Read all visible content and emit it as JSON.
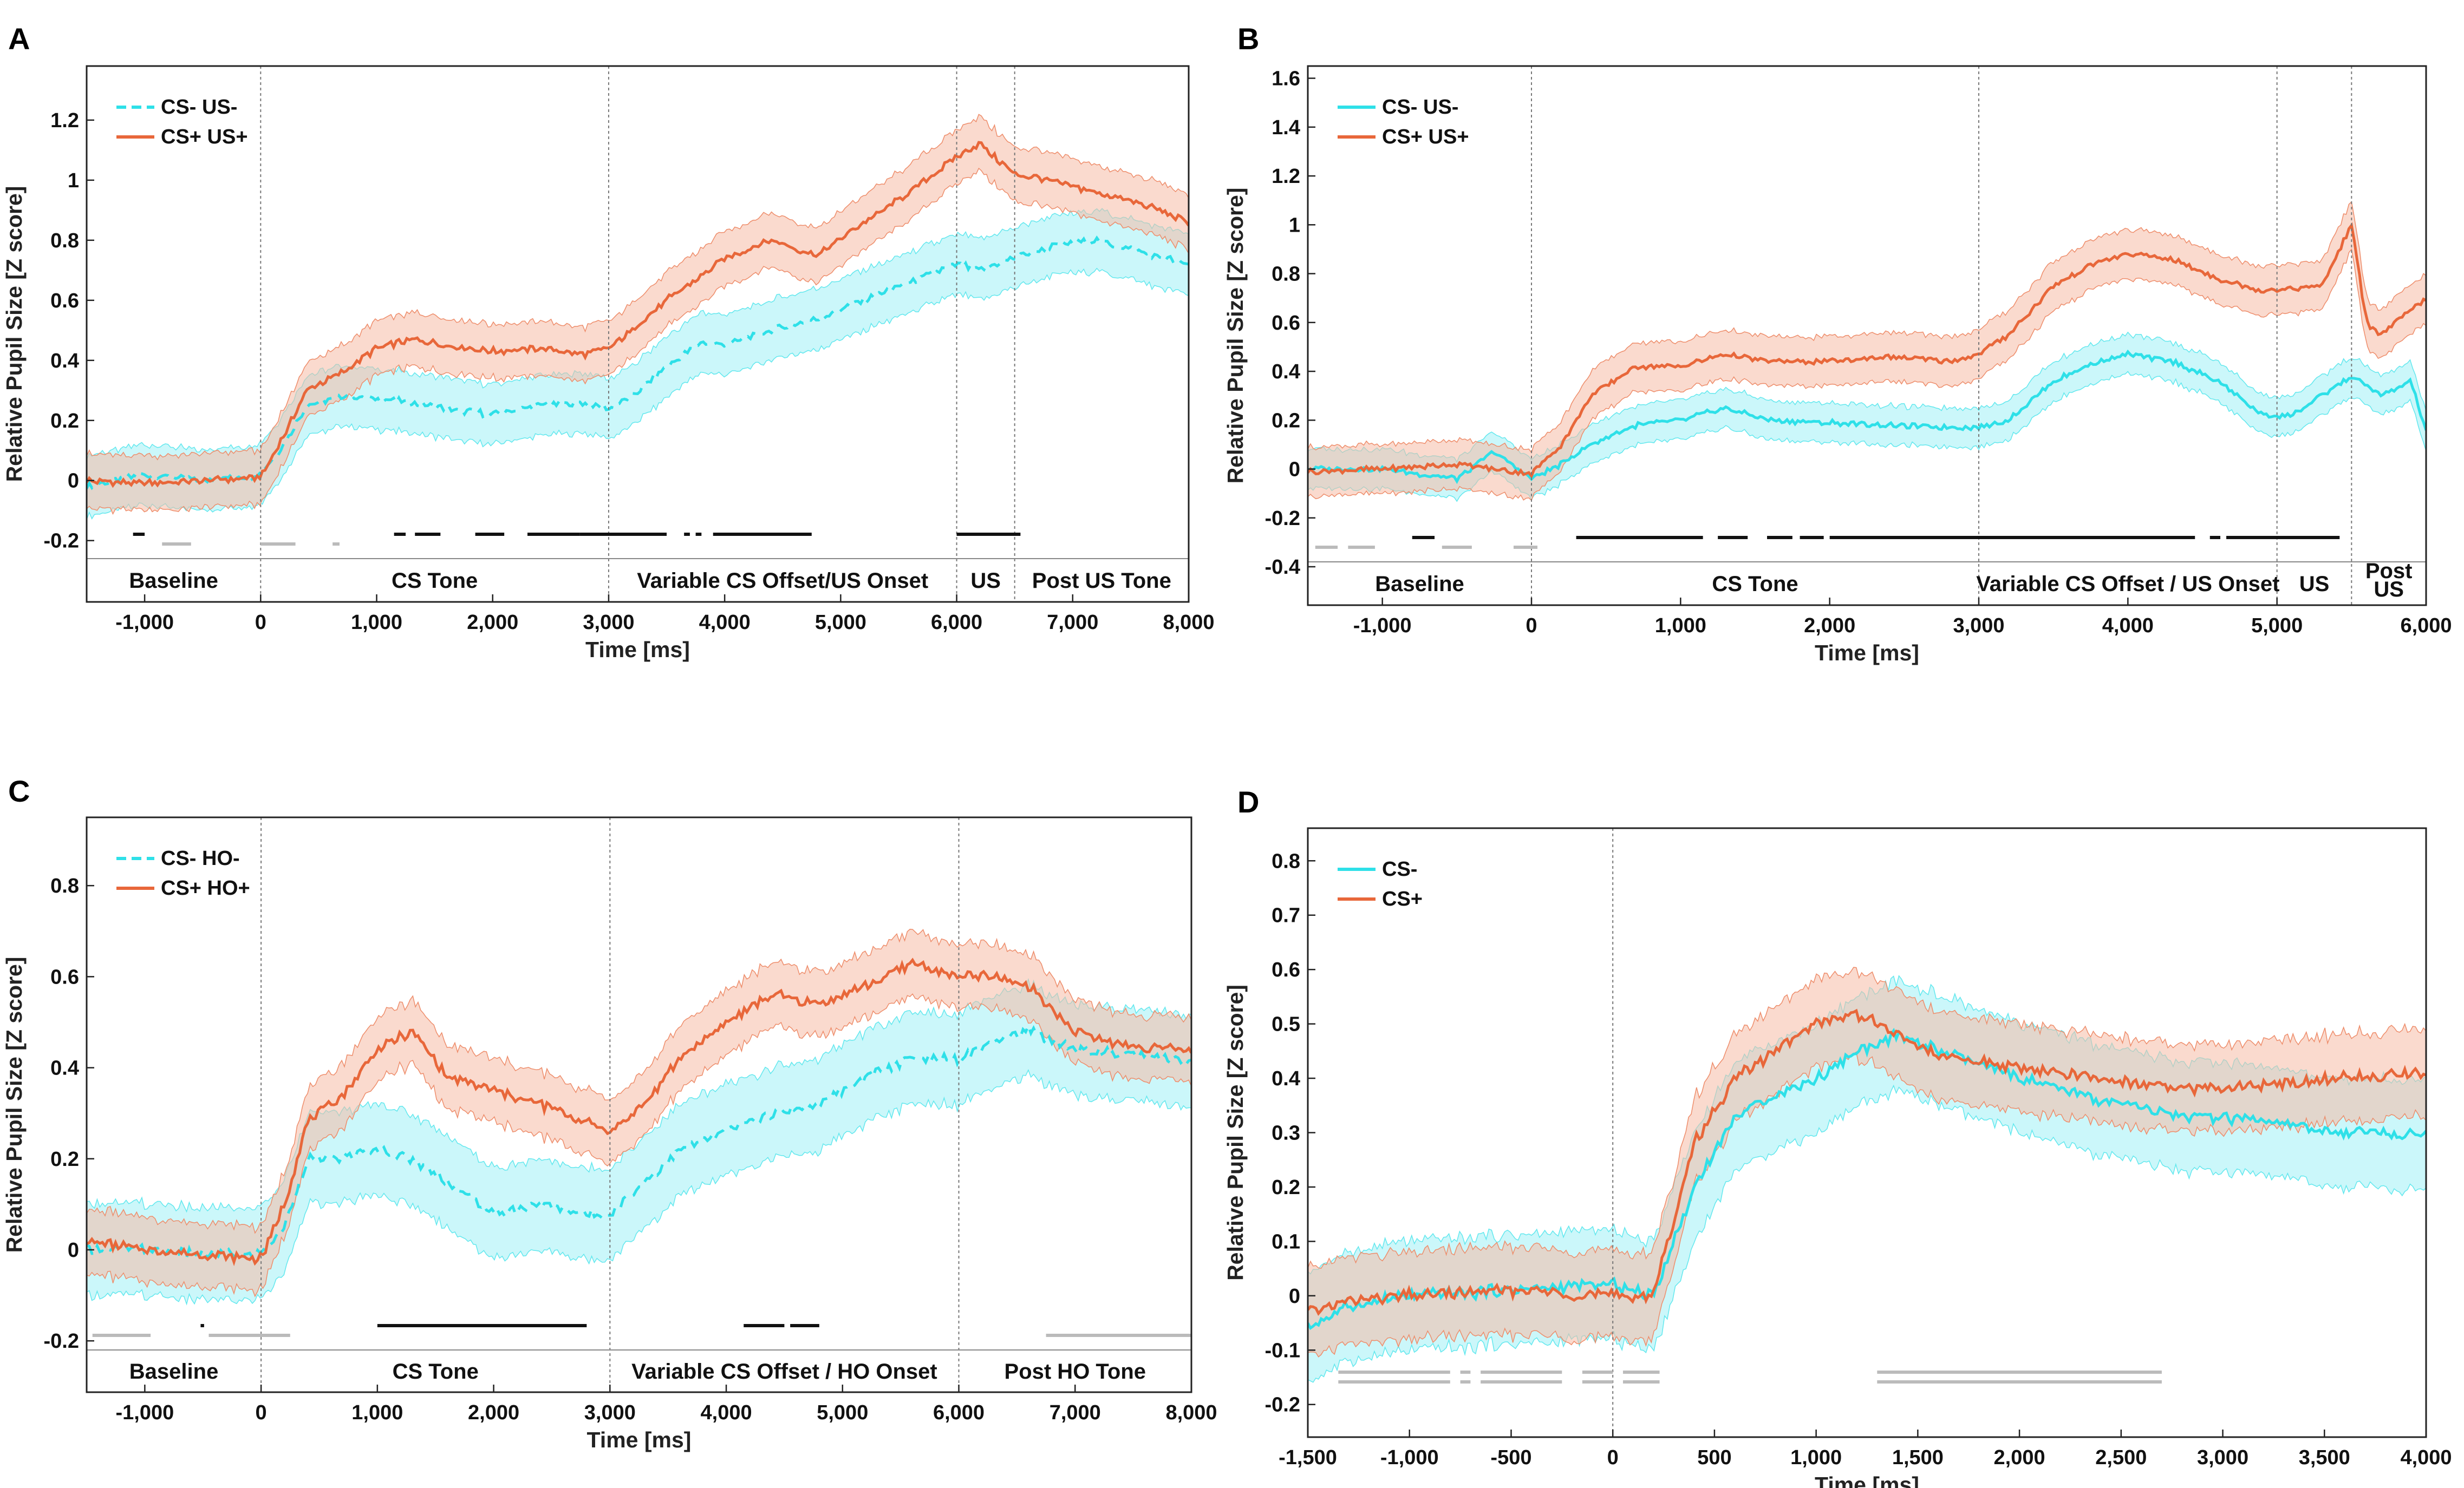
{
  "chart_data": [
    {
      "type": "line",
      "panel": "A",
      "xlabel": "Time [ms]",
      "ylabel": "Relative Pupil Size [Z score]",
      "xlim": [
        -1500,
        8000
      ],
      "ylim": [
        -0.26,
        1.38
      ],
      "xticks": [
        -1000,
        0,
        1000,
        2000,
        3000,
        4000,
        5000,
        6000,
        7000,
        8000
      ],
      "xtick_labels": [
        "-1,000",
        "0",
        "1,000",
        "2,000",
        "3,000",
        "4,000",
        "5,000",
        "6,000",
        "7,000",
        "8,000"
      ],
      "yticks": [
        -0.2,
        0,
        0.2,
        0.4,
        0.6,
        0.8,
        1,
        1.2
      ],
      "ytick_labels": [
        "-0.2",
        "0",
        "0.2",
        "0.4",
        "0.6",
        "0.8",
        "1",
        "1.2"
      ],
      "event_lines": [
        0,
        3000,
        6000,
        6500
      ],
      "phases": [
        {
          "label": "Baseline",
          "start": -1500,
          "end": 0
        },
        {
          "label": "CS Tone",
          "start": 0,
          "end": 3000
        },
        {
          "label": "Variable CS Offset/US Onset",
          "start": 3000,
          "end": 6000
        },
        {
          "label": "US",
          "start": 6000,
          "end": 6500
        },
        {
          "label": "Post US Tone",
          "start": 6500,
          "end": 8000
        }
      ],
      "series": [
        {
          "name": "CS- US-",
          "color": "#2ee0e8",
          "dashed": true,
          "sem": 0.1,
          "x": [
            -1500,
            -1000,
            -500,
            0,
            200,
            400,
            700,
            1000,
            1300,
            1600,
            2000,
            2400,
            2800,
            3000,
            3200,
            3500,
            3800,
            4000,
            4400,
            4800,
            5200,
            5600,
            6000,
            6200,
            6500,
            6800,
            7200,
            7600,
            8000
          ],
          "y": [
            -0.02,
            0.02,
            0.0,
            0.02,
            0.12,
            0.25,
            0.28,
            0.27,
            0.26,
            0.24,
            0.22,
            0.25,
            0.26,
            0.24,
            0.28,
            0.38,
            0.46,
            0.45,
            0.5,
            0.54,
            0.6,
            0.66,
            0.72,
            0.7,
            0.74,
            0.78,
            0.8,
            0.76,
            0.72
          ]
        },
        {
          "name": "CS+ US+",
          "color": "#e8673a",
          "dashed": false,
          "sem": 0.09,
          "x": [
            -1500,
            -1000,
            -500,
            0,
            200,
            400,
            700,
            1000,
            1300,
            1600,
            2000,
            2400,
            2800,
            3000,
            3200,
            3500,
            3800,
            4000,
            4400,
            4800,
            5200,
            5600,
            6000,
            6200,
            6500,
            6800,
            7200,
            7600,
            8000
          ],
          "y": [
            0.0,
            -0.01,
            0.0,
            0.01,
            0.15,
            0.3,
            0.36,
            0.44,
            0.47,
            0.45,
            0.43,
            0.44,
            0.42,
            0.44,
            0.5,
            0.6,
            0.68,
            0.74,
            0.8,
            0.75,
            0.86,
            0.96,
            1.08,
            1.12,
            1.02,
            1.0,
            0.96,
            0.92,
            0.86
          ]
        }
      ],
      "sig_rows": [
        {
          "color": "#111111",
          "segments": [
            [
              -1100,
              -1000
            ],
            [
              1150,
              1250
            ],
            [
              1330,
              1550
            ],
            [
              1850,
              2100
            ],
            [
              2300,
              2750
            ],
            [
              2750,
              3500
            ],
            [
              3650,
              3700
            ],
            [
              3750,
              3800
            ],
            [
              3900,
              4750
            ],
            [
              6000,
              6550
            ]
          ]
        },
        {
          "color": "#bbbbbb",
          "segments": [
            [
              -850,
              -600
            ],
            [
              0,
              300
            ],
            [
              620,
              680
            ]
          ]
        }
      ],
      "legend": [
        {
          "label": "CS- US-",
          "color": "#2ee0e8",
          "dashed": true
        },
        {
          "label": "CS+ US+",
          "color": "#e8673a",
          "dashed": false
        }
      ]
    },
    {
      "type": "line",
      "panel": "B",
      "xlabel": "Time [ms]",
      "ylabel": "Relative Pupil Size [Z score]",
      "xlim": [
        -1500,
        6000
      ],
      "ylim": [
        -0.38,
        1.65
      ],
      "xticks": [
        -1000,
        0,
        1000,
        2000,
        3000,
        4000,
        5000,
        6000
      ],
      "xtick_labels": [
        "-1,000",
        "0",
        "1,000",
        "2,000",
        "3,000",
        "4,000",
        "5,000",
        "6,000"
      ],
      "yticks": [
        -0.4,
        -0.2,
        0,
        0.2,
        0.4,
        0.6,
        0.8,
        1,
        1.2,
        1.4,
        1.6
      ],
      "ytick_labels": [
        "-0.4",
        "-0.2",
        "0",
        "0.2",
        "0.4",
        "0.6",
        "0.8",
        "1",
        "1.2",
        "1.4",
        "1.6"
      ],
      "event_lines": [
        0,
        3000,
        5000,
        5500
      ],
      "phases": [
        {
          "label": "Baseline",
          "start": -1500,
          "end": 0
        },
        {
          "label": "CS Tone",
          "start": 0,
          "end": 3000
        },
        {
          "label": "Variable CS Offset / US Onset",
          "start": 3000,
          "end": 5000
        },
        {
          "label": "US",
          "start": 5000,
          "end": 5500
        },
        {
          "label": "Post US",
          "start": 5500,
          "end": 6000
        }
      ],
      "series": [
        {
          "name": "CS- US-",
          "color": "#2ee0e8",
          "dashed": false,
          "sem": 0.08,
          "x": [
            -1500,
            -1000,
            -500,
            -250,
            0,
            200,
            400,
            700,
            1000,
            1300,
            1600,
            2000,
            2400,
            2800,
            3000,
            3200,
            3500,
            3800,
            4000,
            4300,
            4600,
            4900,
            5100,
            5300,
            5500,
            5700,
            5900,
            6000
          ],
          "y": [
            0.0,
            0.0,
            -0.04,
            0.07,
            -0.04,
            0.02,
            0.1,
            0.18,
            0.2,
            0.25,
            0.2,
            0.19,
            0.18,
            0.17,
            0.17,
            0.2,
            0.36,
            0.44,
            0.47,
            0.44,
            0.36,
            0.22,
            0.22,
            0.3,
            0.38,
            0.3,
            0.36,
            0.15
          ]
        },
        {
          "name": "CS+ US+",
          "color": "#e8673a",
          "dashed": false,
          "sem": 0.1,
          "x": [
            -1500,
            -1000,
            -500,
            -250,
            0,
            200,
            400,
            700,
            1000,
            1300,
            1600,
            2000,
            2400,
            2800,
            3000,
            3200,
            3500,
            3800,
            4000,
            4300,
            4600,
            4900,
            5100,
            5300,
            5500,
            5600,
            5700,
            5900,
            6000
          ],
          "y": [
            -0.01,
            0.0,
            0.02,
            0.0,
            -0.02,
            0.1,
            0.3,
            0.42,
            0.42,
            0.47,
            0.44,
            0.44,
            0.46,
            0.44,
            0.47,
            0.55,
            0.75,
            0.85,
            0.88,
            0.86,
            0.78,
            0.73,
            0.74,
            0.75,
            1.0,
            0.6,
            0.55,
            0.65,
            0.7
          ]
        }
      ],
      "sig_rows": [
        {
          "color": "#111111",
          "segments": [
            [
              -800,
              -650
            ],
            [
              300,
              1150
            ],
            [
              1250,
              1450
            ],
            [
              1580,
              1750
            ],
            [
              1800,
              1960
            ],
            [
              2000,
              4450
            ],
            [
              4550,
              4620
            ],
            [
              4660,
              5420
            ]
          ]
        },
        {
          "color": "#bbbbbb",
          "segments": [
            [
              -1450,
              -1300
            ],
            [
              -1230,
              -1050
            ],
            [
              -600,
              -400
            ],
            [
              -120,
              40
            ]
          ]
        }
      ],
      "legend": [
        {
          "label": "CS- US-",
          "color": "#2ee0e8",
          "dashed": false
        },
        {
          "label": "CS+ US+",
          "color": "#e8673a",
          "dashed": false
        }
      ]
    },
    {
      "type": "line",
      "panel": "C",
      "xlabel": "Time [ms]",
      "ylabel": "Relative Pupil Size [Z score]",
      "xlim": [
        -1500,
        8000
      ],
      "ylim": [
        -0.22,
        0.95
      ],
      "xticks": [
        -1000,
        0,
        1000,
        2000,
        3000,
        4000,
        5000,
        6000,
        7000,
        8000
      ],
      "xtick_labels": [
        "-1,000",
        "0",
        "1,000",
        "2,000",
        "3,000",
        "4,000",
        "5,000",
        "6,000",
        "7,000",
        "8,000"
      ],
      "yticks": [
        -0.2,
        0,
        0.2,
        0.4,
        0.6,
        0.8
      ],
      "ytick_labels": [
        "-0.2",
        "0",
        "0.2",
        "0.4",
        "0.6",
        "0.8"
      ],
      "event_lines": [
        0,
        3000,
        6000
      ],
      "phases": [
        {
          "label": "Baseline",
          "start": -1500,
          "end": 0
        },
        {
          "label": "CS Tone",
          "start": 0,
          "end": 3000
        },
        {
          "label": "Variable  CS Offset / HO Onset",
          "start": 3000,
          "end": 6000
        },
        {
          "label": "Post HO Tone",
          "start": 6000,
          "end": 8000
        }
      ],
      "series": [
        {
          "name": "CS- HO-",
          "color": "#2ee0e8",
          "dashed": true,
          "sem": 0.1,
          "x": [
            -1500,
            -1000,
            -500,
            0,
            200,
            400,
            700,
            1000,
            1300,
            1600,
            2000,
            2400,
            2800,
            3000,
            3300,
            3600,
            4000,
            4400,
            4800,
            5200,
            5600,
            6000,
            6300,
            6600,
            7000,
            7400,
            7800,
            8000
          ],
          "y": [
            0.0,
            0.0,
            -0.01,
            -0.01,
            0.05,
            0.2,
            0.2,
            0.22,
            0.2,
            0.15,
            0.08,
            0.1,
            0.08,
            0.08,
            0.15,
            0.22,
            0.26,
            0.3,
            0.32,
            0.38,
            0.42,
            0.42,
            0.46,
            0.48,
            0.44,
            0.43,
            0.42,
            0.41
          ]
        },
        {
          "name": "CS+ HO+",
          "color": "#e8673a",
          "dashed": false,
          "sem": 0.07,
          "x": [
            -1500,
            -1000,
            -500,
            0,
            200,
            400,
            700,
            1000,
            1300,
            1600,
            2000,
            2400,
            2800,
            3000,
            3300,
            3600,
            4000,
            4400,
            4800,
            5200,
            5600,
            6000,
            6300,
            6600,
            7000,
            7400,
            7800,
            8000
          ],
          "y": [
            0.02,
            0.0,
            -0.01,
            -0.02,
            0.1,
            0.28,
            0.34,
            0.44,
            0.48,
            0.38,
            0.35,
            0.32,
            0.28,
            0.26,
            0.32,
            0.42,
            0.5,
            0.56,
            0.54,
            0.58,
            0.63,
            0.6,
            0.6,
            0.58,
            0.48,
            0.45,
            0.44,
            0.44
          ]
        }
      ],
      "sig_rows": [
        {
          "color": "#111111",
          "segments": [
            [
              1000,
              2800
            ],
            [
              4150,
              4500
            ],
            [
              4550,
              4800
            ],
            [
              -520,
              -490
            ]
          ]
        },
        {
          "color": "#bbbbbb",
          "segments": [
            [
              -1450,
              -950
            ],
            [
              -450,
              250
            ],
            [
              6750,
              8000
            ]
          ]
        }
      ],
      "legend": [
        {
          "label": "CS- HO-",
          "color": "#2ee0e8",
          "dashed": true
        },
        {
          "label": "CS+ HO+",
          "color": "#e8673a",
          "dashed": false
        }
      ]
    },
    {
      "type": "line",
      "panel": "D",
      "xlabel": "Time [ms]",
      "ylabel": "Relative Pupil Size [Z score]",
      "xlim": [
        -1500,
        4000
      ],
      "ylim": [
        -0.26,
        0.86
      ],
      "xticks": [
        -1500,
        -1000,
        -500,
        0,
        500,
        1000,
        1500,
        2000,
        2500,
        3000,
        3500,
        4000
      ],
      "xtick_labels": [
        "-1,500",
        "-1,000",
        "-500",
        "0",
        "500",
        "1,000",
        "1,500",
        "2,000",
        "2,500",
        "3,000",
        "3,500",
        "4,000"
      ],
      "yticks": [
        -0.2,
        -0.1,
        0,
        0.1,
        0.2,
        0.3,
        0.4,
        0.5,
        0.6,
        0.7,
        0.8
      ],
      "ytick_labels": [
        "-0.2",
        "-0.1",
        "0",
        "0.1",
        "0.2",
        "0.3",
        "0.4",
        "0.5",
        "0.6",
        "0.7",
        "0.8"
      ],
      "event_lines": [
        0
      ],
      "phases": [],
      "series": [
        {
          "name": "CS-",
          "color": "#2ee0e8",
          "dashed": false,
          "sem": 0.1,
          "x": [
            -1500,
            -1300,
            -1000,
            -500,
            0,
            200,
            400,
            600,
            800,
            1000,
            1200,
            1400,
            1600,
            2000,
            2400,
            2800,
            3200,
            3600,
            4000
          ],
          "y": [
            -0.06,
            -0.02,
            0.0,
            0.01,
            0.02,
            0.0,
            0.2,
            0.33,
            0.37,
            0.4,
            0.45,
            0.48,
            0.45,
            0.4,
            0.36,
            0.33,
            0.32,
            0.3,
            0.3
          ]
        },
        {
          "name": "CS+",
          "color": "#e8673a",
          "dashed": false,
          "sem": 0.08,
          "x": [
            -1500,
            -1300,
            -1000,
            -500,
            0,
            200,
            400,
            600,
            800,
            1000,
            1200,
            1400,
            1600,
            2000,
            2400,
            2800,
            3200,
            3600,
            4000
          ],
          "y": [
            -0.03,
            -0.01,
            0.0,
            0.01,
            0.0,
            0.0,
            0.28,
            0.4,
            0.45,
            0.5,
            0.52,
            0.48,
            0.44,
            0.42,
            0.4,
            0.38,
            0.39,
            0.4,
            0.41
          ]
        }
      ],
      "sig_rows": [
        {
          "color": "#bbbbbb",
          "segments": [
            [
              -1350,
              -800
            ],
            [
              -750,
              -700
            ],
            [
              -650,
              -250
            ],
            [
              -150,
              0
            ],
            [
              50,
              230
            ],
            [
              1300,
              2700
            ]
          ]
        },
        {
          "color": "#bbbbbb",
          "segments": [
            [
              -1350,
              -800
            ],
            [
              -750,
              -700
            ],
            [
              -650,
              -250
            ],
            [
              -150,
              0
            ],
            [
              50,
              230
            ],
            [
              1300,
              2700
            ]
          ]
        }
      ],
      "legend": [
        {
          "label": "CS-",
          "color": "#2ee0e8",
          "dashed": false
        },
        {
          "label": "CS+",
          "color": "#e8673a",
          "dashed": false
        }
      ]
    }
  ]
}
